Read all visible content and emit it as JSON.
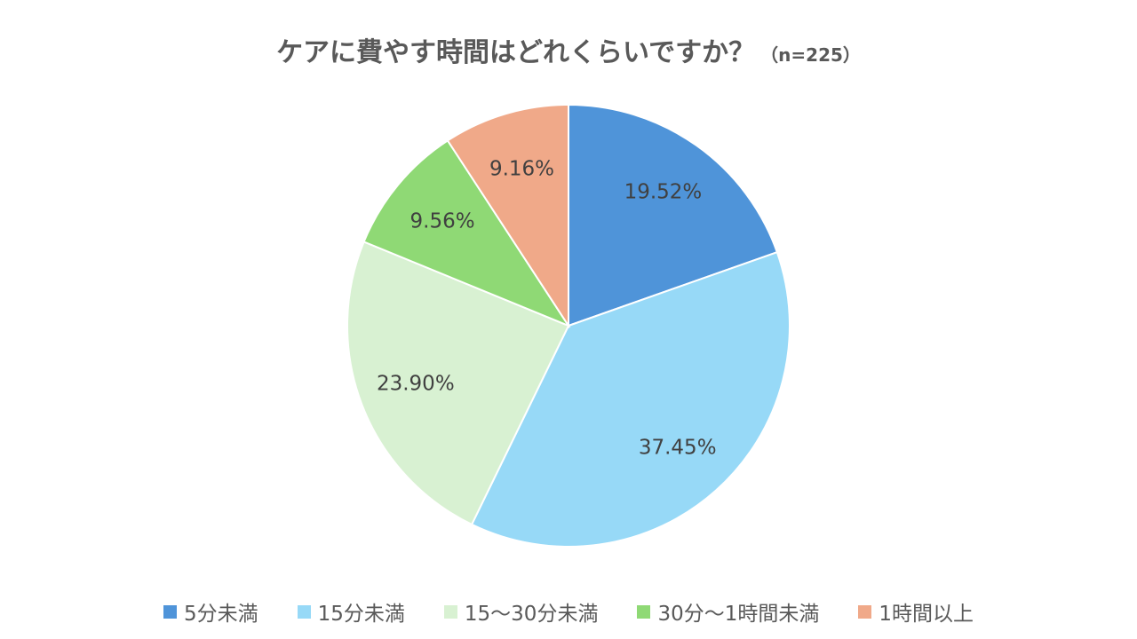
{
  "chart_data": {
    "type": "pie",
    "title": "ケアに費やす時間はどれくらいですか？",
    "subtitle": "（n=225）",
    "categories": [
      "5分未満",
      "15分未満",
      "15～30分未満",
      "30分～1時間未満",
      "1時間以上"
    ],
    "values": [
      19.52,
      37.45,
      23.9,
      9.56,
      9.16
    ],
    "labels": [
      "19.52%",
      "37.45%",
      "23.90%",
      "9.56%",
      "9.16%"
    ],
    "colors": [
      "#4f94d9",
      "#97d9f7",
      "#d8f1d2",
      "#8fd975",
      "#f0a989"
    ],
    "unit": "%",
    "start_angle": "12 o'clock",
    "direction": "clockwise",
    "legend_position": "bottom"
  }
}
